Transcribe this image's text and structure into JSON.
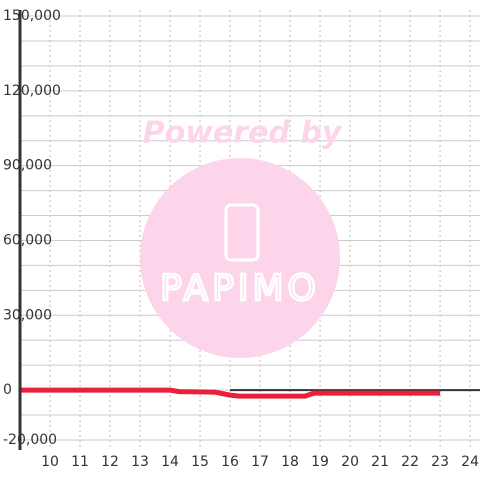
{
  "chart_data": {
    "type": "line",
    "x": [
      9,
      14,
      14.3,
      15.5,
      16,
      16.3,
      18.5,
      18.8,
      23
    ],
    "series": [
      {
        "color": "#333333",
        "x": [
          16,
          24.33
        ],
        "values": [
          0,
          0
        ]
      },
      {
        "color": "#e8203a",
        "x": [
          9,
          14,
          14.3,
          15.5,
          16,
          16.3,
          18.5,
          18.8,
          23
        ],
        "values": [
          0,
          0,
          -600,
          -800,
          -2000,
          -2400,
          -2400,
          -1200,
          -1200
        ]
      }
    ],
    "xlim": [
      9,
      24.33
    ],
    "xticks": [
      10,
      11,
      12,
      13,
      14,
      15,
      16,
      17,
      18,
      19,
      20,
      21,
      22,
      23,
      24
    ],
    "ylim": [
      -20000,
      150000
    ],
    "yticks": [
      {
        "value": -20000,
        "label": "-20,000"
      },
      0,
      {
        "value": 30000,
        "label": "30,000"
      },
      {
        "value": 60000,
        "label": "60,000"
      },
      {
        "value": 90000,
        "label": "90,000"
      },
      {
        "value": 120000,
        "label": "120,000"
      },
      {
        "value": 150000,
        "label": "150,000"
      }
    ],
    "minor_yticks": [
      -10000,
      10000,
      20000,
      40000,
      50000,
      70000,
      80000,
      100000,
      110000,
      130000,
      140000
    ],
    "grid": true,
    "watermark": {
      "text": "Powered by",
      "logo": "PAPIMO"
    }
  }
}
